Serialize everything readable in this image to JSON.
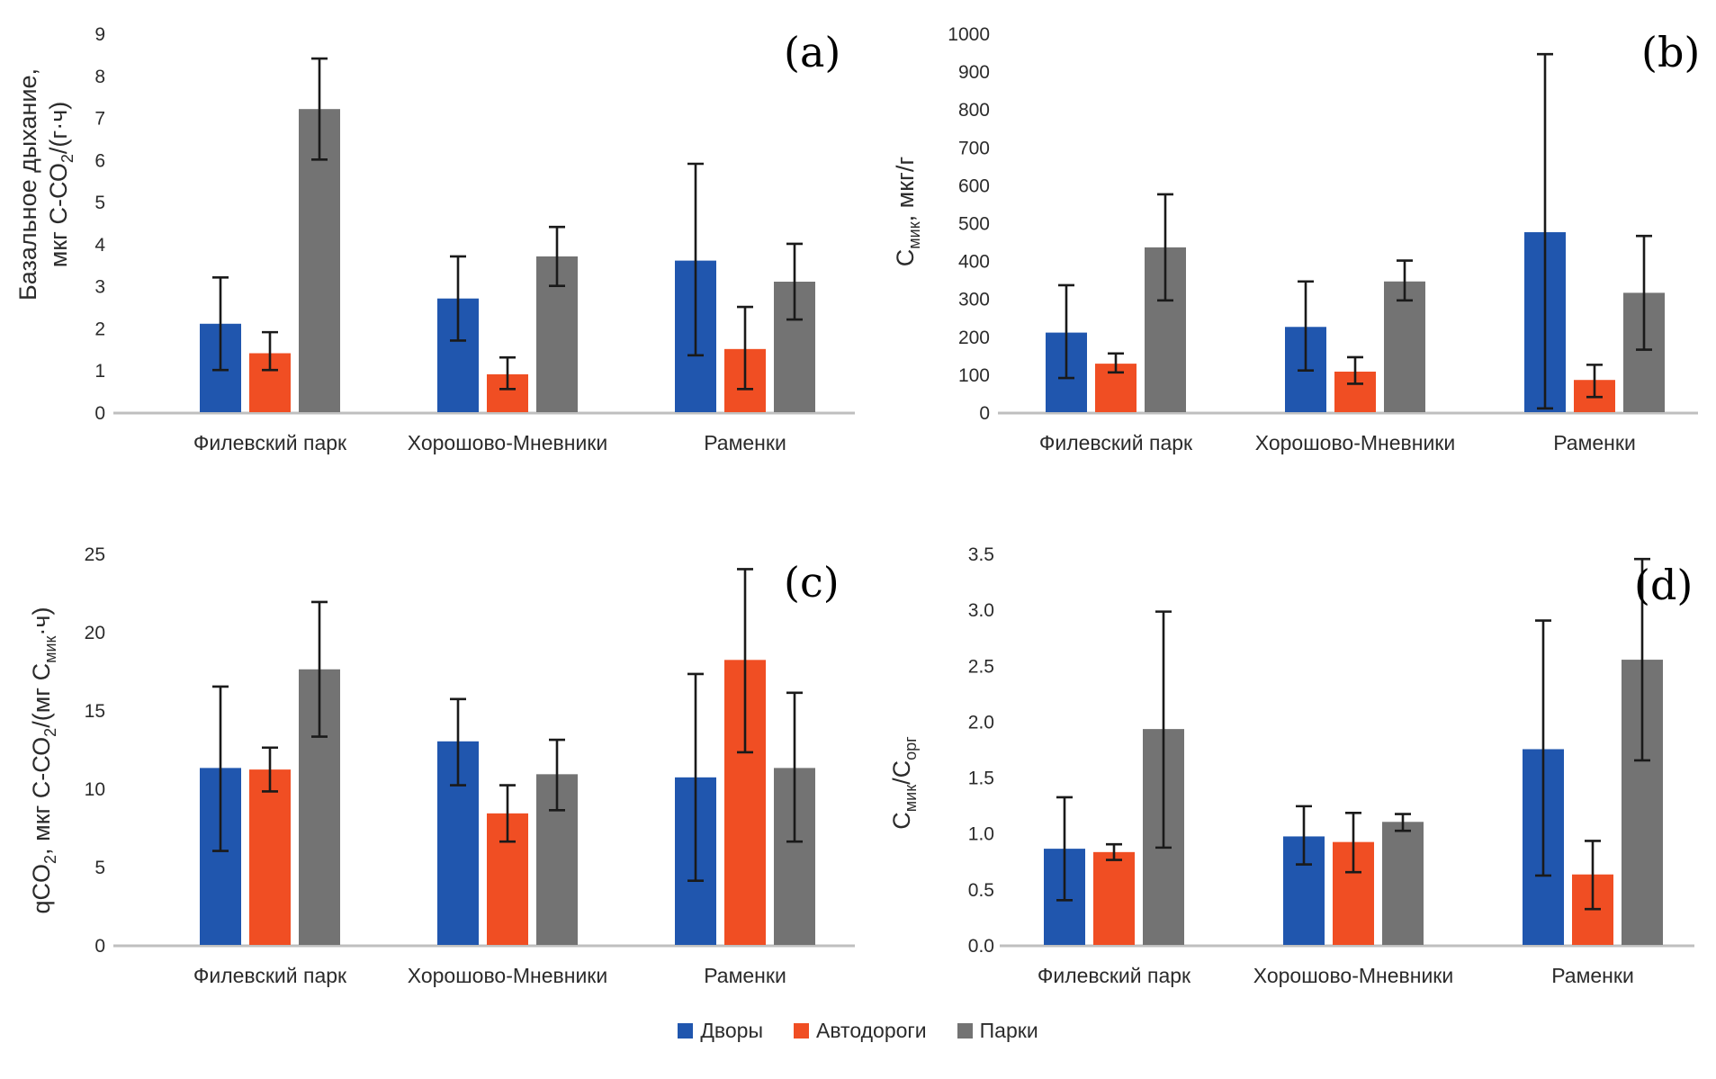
{
  "figure": {
    "background": "#ffffff",
    "categories": [
      "Филевский парк",
      "Хорошово-Мневники",
      "Раменки"
    ],
    "series_names": [
      "Дворы",
      "Автодороги",
      "Парки"
    ],
    "series_colors": [
      "#2056AE",
      "#F04E23",
      "#737373"
    ],
    "axis_line_color": "#BFBFBF",
    "error_bar_color": "#1a1a1a",
    "text_color": "#2b2b2b",
    "legend": {
      "position": "bottom-center",
      "items": [
        {
          "label": "Дворы",
          "color": "#2056AE"
        },
        {
          "label": "Автодороги",
          "color": "#F04E23"
        },
        {
          "label": "Парки",
          "color": "#737373"
        }
      ]
    }
  },
  "chart_data": [
    {
      "type": "bar",
      "panel_label": "(a)",
      "ylabel_lines": [
        "Базальное дыхание,",
        "мкг С-СО_{2}/(г·ч)"
      ],
      "ylim": [
        0,
        9
      ],
      "ytick_step": 1,
      "ytick_decimals": 0,
      "grid": false,
      "categories": [
        "Филевский парк",
        "Хорошово-Мневники",
        "Раменки"
      ],
      "series": [
        {
          "name": "Дворы",
          "values": [
            2.1,
            2.7,
            3.6
          ],
          "err_low": [
            1.0,
            1.7,
            1.35
          ],
          "err_high": [
            3.2,
            3.7,
            5.9
          ]
        },
        {
          "name": "Автодороги",
          "values": [
            1.4,
            0.9,
            1.5
          ],
          "err_low": [
            1.0,
            0.55,
            0.55
          ],
          "err_high": [
            1.9,
            1.3,
            2.5
          ]
        },
        {
          "name": "Парки",
          "values": [
            7.2,
            3.7,
            3.1
          ],
          "err_low": [
            6.0,
            3.0,
            2.2
          ],
          "err_high": [
            8.4,
            4.4,
            4.0
          ]
        }
      ]
    },
    {
      "type": "bar",
      "panel_label": "(b)",
      "ylabel_lines": [
        "C_{мик}, мкг/г"
      ],
      "ylim": [
        0,
        1000
      ],
      "ytick_step": 100,
      "ytick_decimals": 0,
      "grid": false,
      "categories": [
        "Филевский парк",
        "Хорошово-Мневники",
        "Раменки"
      ],
      "series": [
        {
          "name": "Дворы",
          "values": [
            210,
            225,
            475
          ],
          "err_low": [
            90,
            110,
            10
          ],
          "err_high": [
            335,
            345,
            945
          ]
        },
        {
          "name": "Автодороги",
          "values": [
            128,
            107,
            85
          ],
          "err_low": [
            105,
            75,
            40
          ],
          "err_high": [
            155,
            145,
            125
          ]
        },
        {
          "name": "Парки",
          "values": [
            435,
            345,
            315
          ],
          "err_low": [
            295,
            295,
            165
          ],
          "err_high": [
            575,
            400,
            465
          ]
        }
      ]
    },
    {
      "type": "bar",
      "panel_label": "(c)",
      "ylabel_lines": [
        "qCO_{2}, мкг С-СО_{2}/(мг С_{мик}·ч)"
      ],
      "ylim": [
        0,
        25
      ],
      "ytick_step": 5,
      "ytick_decimals": 0,
      "grid": false,
      "categories": [
        "Филевский парк",
        "Хорошово-Мневники",
        "Раменки"
      ],
      "series": [
        {
          "name": "Дворы",
          "values": [
            11.3,
            13.0,
            10.7
          ],
          "err_low": [
            6.0,
            10.2,
            4.1
          ],
          "err_high": [
            16.5,
            15.7,
            17.3
          ]
        },
        {
          "name": "Автодороги",
          "values": [
            11.2,
            8.4,
            18.2
          ],
          "err_low": [
            9.8,
            6.6,
            12.3
          ],
          "err_high": [
            12.6,
            10.2,
            24.0
          ]
        },
        {
          "name": "Парки",
          "values": [
            17.6,
            10.9,
            11.3
          ],
          "err_low": [
            13.3,
            8.6,
            6.6
          ],
          "err_high": [
            21.9,
            13.1,
            16.1
          ]
        }
      ]
    },
    {
      "type": "bar",
      "panel_label": "(d)",
      "ylabel_lines": [
        "C_{мик}/C_{орг}"
      ],
      "ylim": [
        0,
        3.5
      ],
      "ytick_step": 0.5,
      "ytick_decimals": 1,
      "grid": false,
      "categories": [
        "Филевский парк",
        "Хорошово-Мневники",
        "Раменки"
      ],
      "series": [
        {
          "name": "Дворы",
          "values": [
            0.86,
            0.97,
            1.75
          ],
          "err_low": [
            0.4,
            0.72,
            0.62
          ],
          "err_high": [
            1.32,
            1.24,
            2.9
          ]
        },
        {
          "name": "Автодороги",
          "values": [
            0.83,
            0.92,
            0.63
          ],
          "err_low": [
            0.76,
            0.65,
            0.32
          ],
          "err_high": [
            0.9,
            1.18,
            0.93
          ]
        },
        {
          "name": "Парки",
          "values": [
            1.93,
            1.1,
            2.55
          ],
          "err_low": [
            0.87,
            1.02,
            1.65
          ],
          "err_high": [
            2.98,
            1.17,
            3.45
          ]
        }
      ]
    }
  ]
}
